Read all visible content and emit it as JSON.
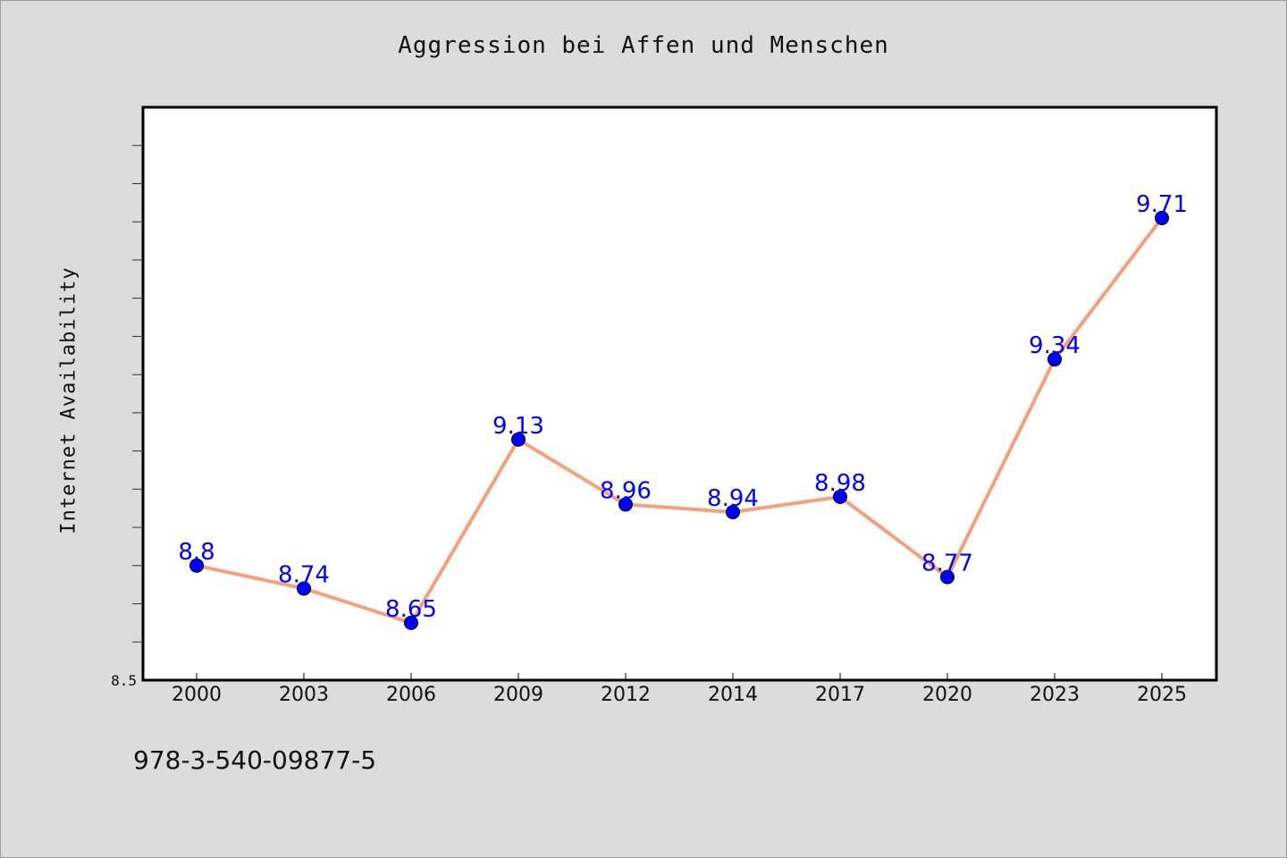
{
  "chart_data": {
    "type": "line",
    "title": "Aggression bei Affen und Menschen",
    "ylabel": "Internet Availability",
    "xlabel": "",
    "categories": [
      "2000",
      "2003",
      "2006",
      "2009",
      "2012",
      "2014",
      "2017",
      "2020",
      "2023",
      "2025"
    ],
    "series": [
      {
        "values": [
          8.8,
          8.74,
          8.65,
          9.13,
          8.96,
          8.94,
          8.98,
          8.77,
          9.34,
          9.71
        ]
      }
    ],
    "data_labels": [
      "8.8",
      "8.74",
      "8.65",
      "9.13",
      "8.96",
      "8.94",
      "8.98",
      "8.77",
      "9.34",
      "9.71"
    ],
    "y_tick_labels": [
      "8.5"
    ],
    "ylim": [
      8.5,
      10.0
    ],
    "y_minor_step": 0.1,
    "grid": false,
    "line_color": "#f4a07c",
    "marker_color": "#0000ff",
    "label_color": "#0000ff"
  },
  "footnote": "978-3-540-09877-5"
}
